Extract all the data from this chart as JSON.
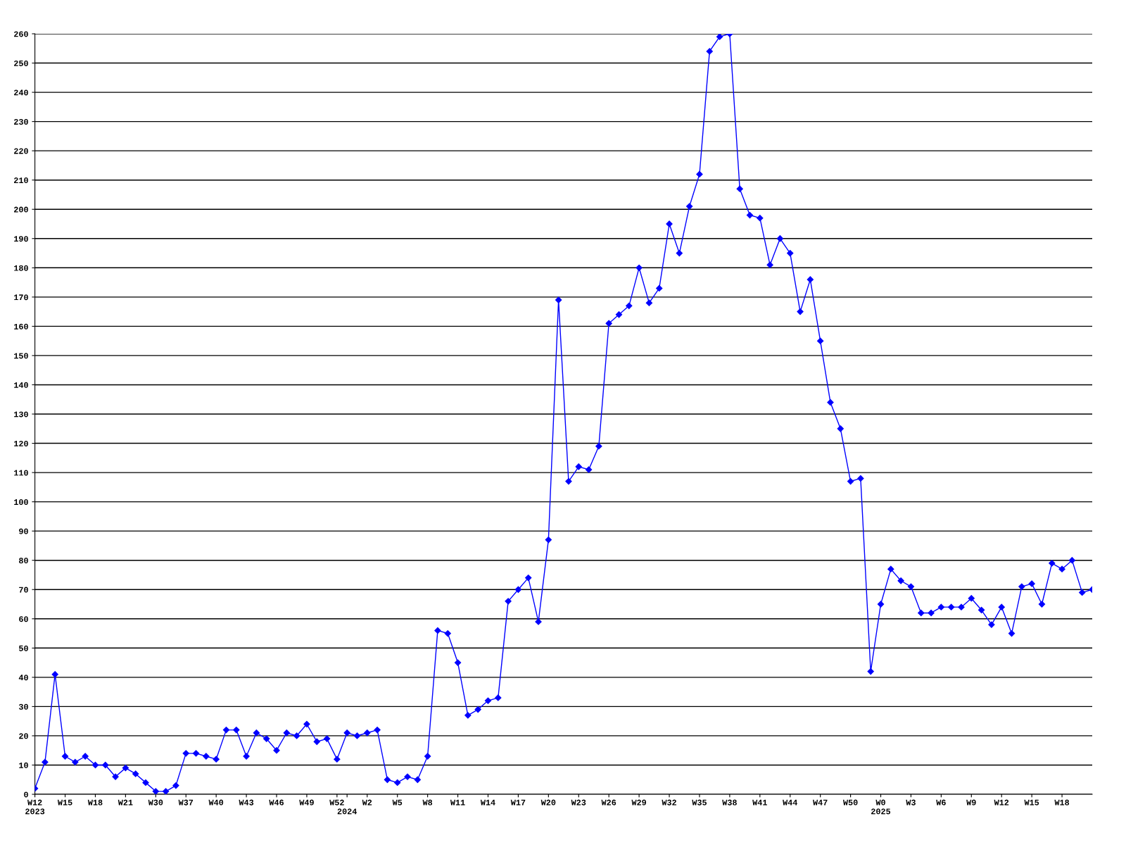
{
  "chart_data": {
    "type": "line",
    "categories": [
      "W12\n2023",
      null,
      null,
      "W15",
      null,
      null,
      "W18",
      null,
      null,
      "W21",
      null,
      null,
      "W30",
      null,
      null,
      "W37",
      null,
      null,
      "W40",
      null,
      null,
      "W43",
      null,
      null,
      "W46",
      null,
      null,
      "W49",
      null,
      null,
      "W52",
      "\n2024",
      null,
      "W2",
      null,
      null,
      "W5",
      null,
      null,
      "W8",
      null,
      null,
      "W11",
      null,
      null,
      "W14",
      null,
      null,
      "W17",
      null,
      null,
      "W20",
      null,
      null,
      "W23",
      null,
      null,
      "W26",
      null,
      null,
      "W29",
      null,
      null,
      "W32",
      null,
      null,
      "W35",
      null,
      null,
      "W38",
      null,
      null,
      "W41",
      null,
      null,
      "W44",
      null,
      null,
      "W47",
      null,
      null,
      "W50",
      null,
      null,
      "W0\n2025",
      null,
      null,
      "W3",
      null,
      null,
      "W6",
      null,
      null,
      "W9",
      null,
      null,
      "W12",
      null,
      null,
      "W15",
      null,
      null,
      "W18",
      null,
      null,
      null
    ],
    "series": [
      {
        "color": "#0000ff",
        "values": [
          2,
          11,
          41,
          13,
          11,
          13,
          10,
          10,
          6,
          9,
          7,
          4,
          1,
          1,
          3,
          14,
          14,
          13,
          12,
          22,
          22,
          13,
          21,
          19,
          15,
          21,
          20,
          24,
          18,
          19,
          12,
          21,
          20,
          21,
          22,
          5,
          4,
          6,
          5,
          13,
          56,
          55,
          45,
          27,
          29,
          32,
          33,
          66,
          70,
          74,
          59,
          87,
          169,
          107,
          112,
          111,
          119,
          161,
          164,
          167,
          180,
          168,
          173,
          195,
          185,
          201,
          212,
          254,
          259,
          260,
          207,
          198,
          197,
          181,
          190,
          185,
          165,
          176,
          155,
          134,
          125,
          107,
          108,
          42,
          65,
          77,
          73,
          71,
          62,
          62,
          64,
          64,
          64,
          67,
          63,
          58,
          64,
          55,
          71,
          72,
          65,
          79,
          77,
          80,
          69,
          70
        ]
      }
    ],
    "ylim": [
      0,
      260
    ],
    "yticks": [
      0,
      10,
      20,
      30,
      40,
      50,
      60,
      70,
      80,
      90,
      100,
      110,
      120,
      130,
      140,
      150,
      160,
      170,
      180,
      190,
      200,
      210,
      220,
      230,
      240,
      250,
      260
    ],
    "grid": "y",
    "marker": "diamond",
    "line_style": "solid",
    "legend": false
  }
}
